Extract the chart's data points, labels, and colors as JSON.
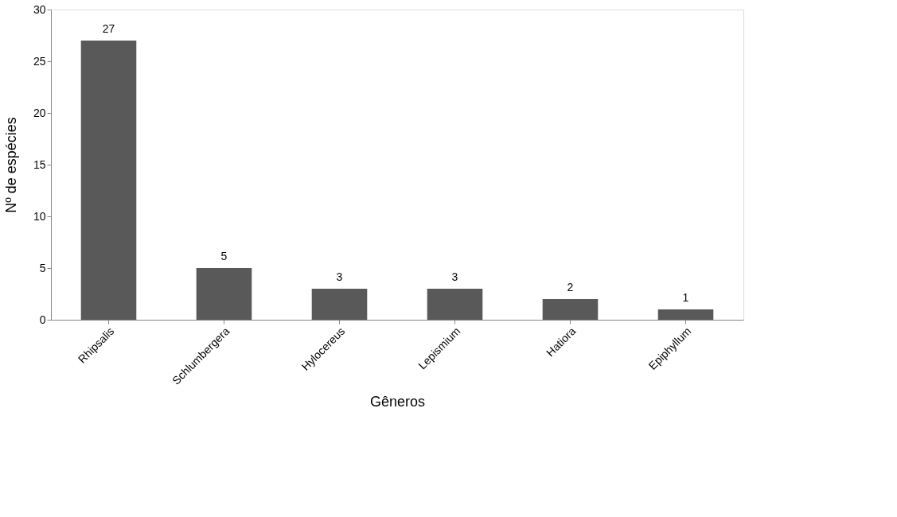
{
  "chart_data": {
    "type": "bar",
    "xlabel": "Gêneros",
    "ylabel": "Nº de espécies",
    "categories": [
      "Rhipsalis",
      "Schlumbergera",
      "Hylocereus",
      "Lepismium",
      "Hatiora",
      "Epiphyllum"
    ],
    "values": [
      27,
      5,
      3,
      3,
      2,
      1
    ],
    "color": "#595959",
    "ylim": [
      0,
      30
    ],
    "yticks": [
      0,
      5,
      10,
      15,
      20,
      25,
      30
    ],
    "grid": false,
    "data_labels": true
  }
}
